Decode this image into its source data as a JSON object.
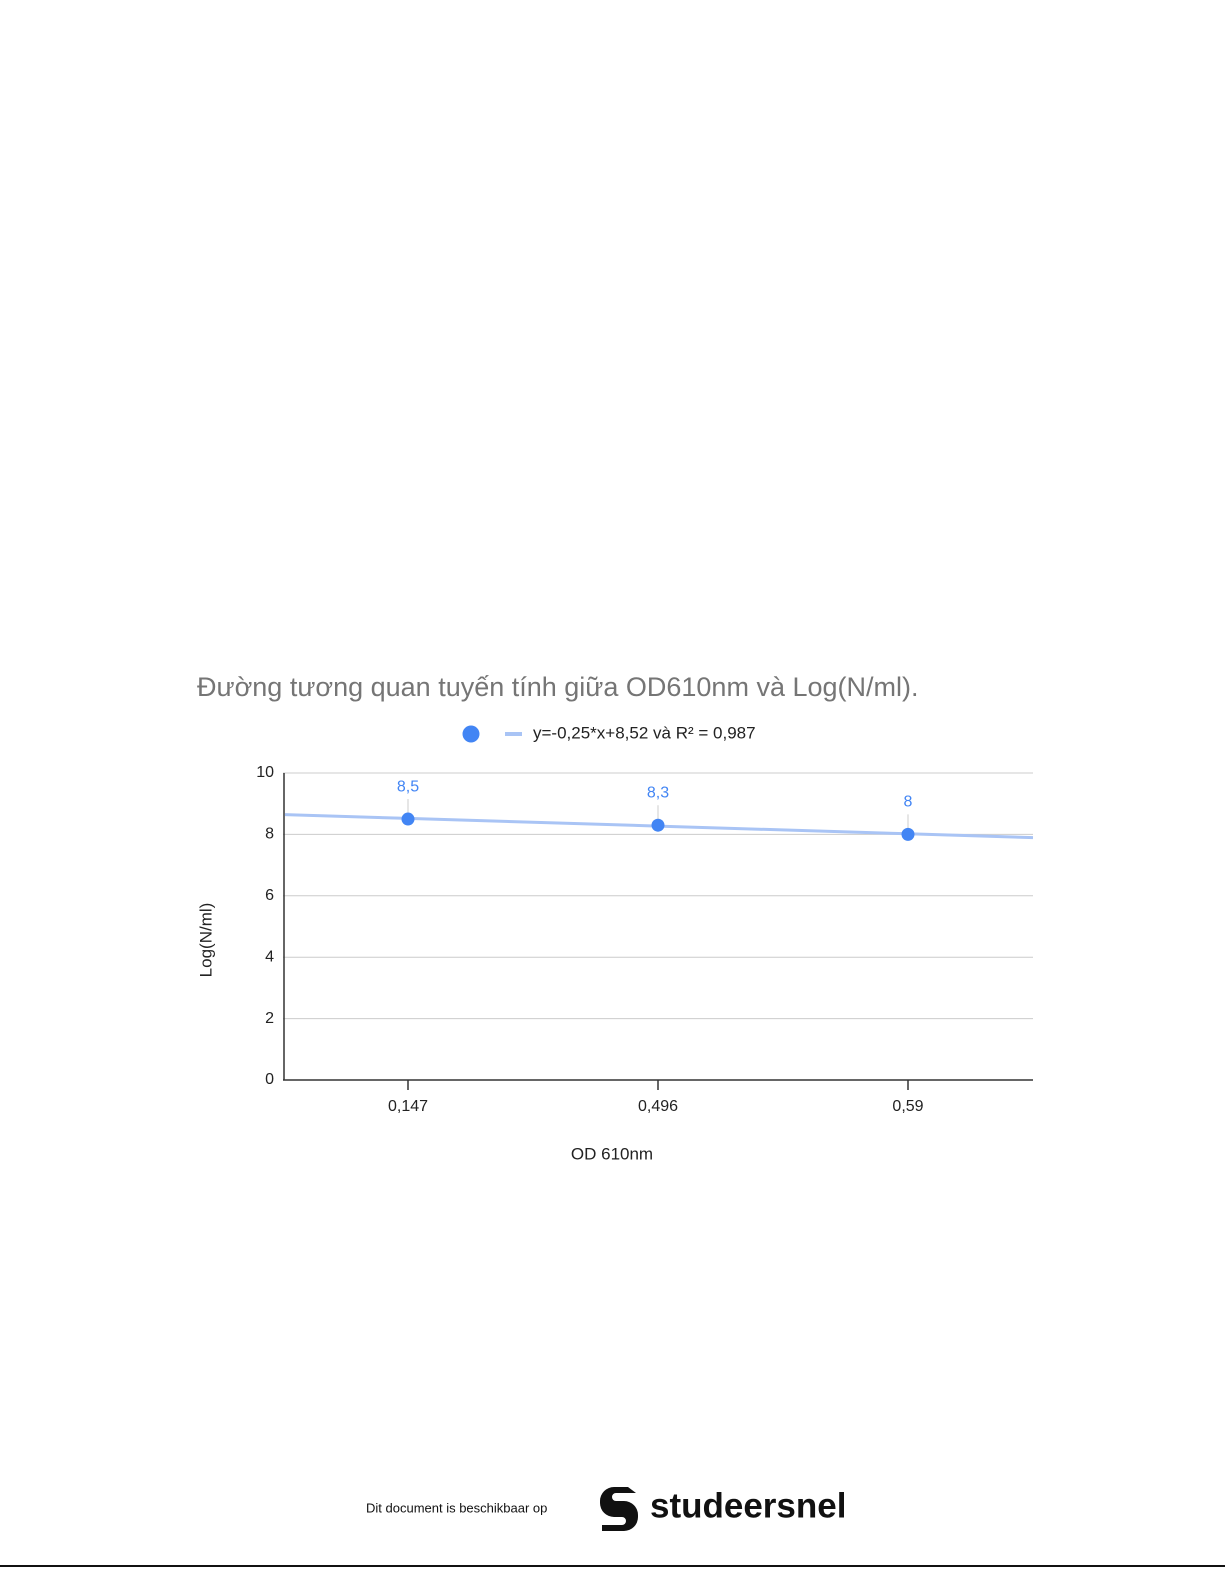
{
  "chart_data": {
    "type": "scatter",
    "title": "Đường tương quan tuyến tính giữa OD610nm và Log(N/ml).",
    "x_label": "OD 610nm",
    "y_label": "Log(N/ml)",
    "categories": [
      "0,147",
      "0,496",
      "0,59"
    ],
    "series": [
      {
        "color": "#4285f4",
        "values": [
          8.5,
          8.3,
          8
        ],
        "value_labels": [
          "8,5",
          "8,3",
          "8"
        ]
      },
      {
        "name": "y=-0,25*x+8,52 và R² = 0,987",
        "color": "#a9c4f5",
        "values": [
          8.52,
          8.27,
          8.02
        ],
        "type": "trendline"
      }
    ],
    "ylim": [
      0,
      10
    ],
    "yticks": [
      0,
      2,
      4,
      6,
      8,
      10
    ],
    "grid": true,
    "legend": "top"
  },
  "footer": {
    "text": "Dit document is beschikbaar op",
    "brand": "studeersnel"
  }
}
